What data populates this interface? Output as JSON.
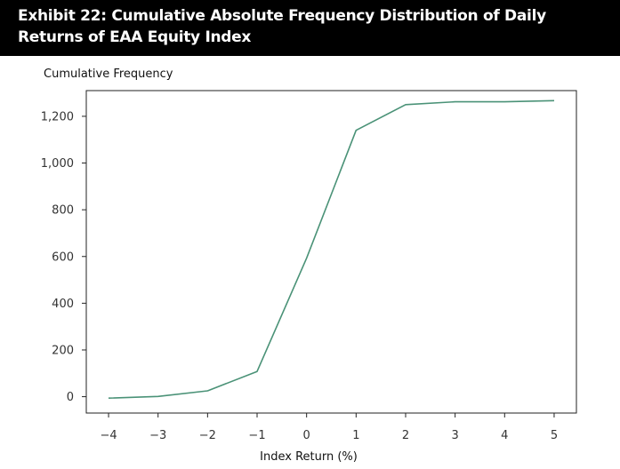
{
  "header": {
    "title": "Exhibit 22: Cumulative Absolute Frequency Distribution of Daily Returns of EAA Equity Index"
  },
  "chart_data": {
    "type": "line",
    "title": "Exhibit 22: Cumulative Absolute Frequency Distribution of Daily Returns of EAA Equity Index",
    "xlabel": "Index Return (%)",
    "ylabel": "Cumulative Frequency",
    "x": [
      -4,
      -3,
      -2,
      -1,
      0,
      1,
      2,
      3,
      4,
      5
    ],
    "x_tick_labels": [
      "−4",
      "−3",
      "−2",
      "−1",
      "0",
      "1",
      "2",
      "3",
      "4",
      "5"
    ],
    "series": [
      {
        "values": [
          -6,
          1,
          25,
          108,
          593,
          1140,
          1250,
          1262,
          1262,
          1267
        ],
        "color": "#4a9277"
      }
    ],
    "y_ticks": [
      0,
      200,
      400,
      600,
      800,
      1000,
      1200
    ],
    "y_tick_labels": [
      "0",
      "200",
      "400",
      "600",
      "800",
      "1,000",
      "1,200"
    ],
    "xlim": [
      -4.45,
      5.45
    ],
    "ylim": [
      -70,
      1310
    ],
    "grid": false,
    "legend": "none"
  }
}
